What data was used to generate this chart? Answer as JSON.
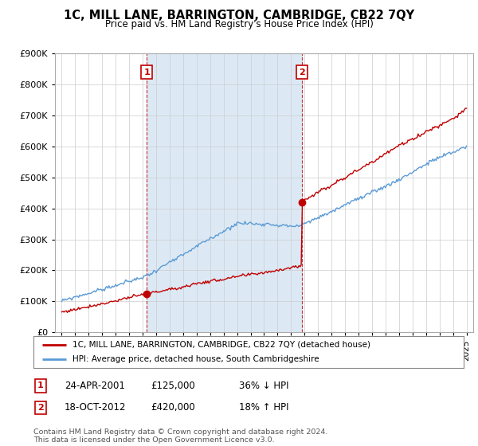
{
  "title": "1C, MILL LANE, BARRINGTON, CAMBRIDGE, CB22 7QY",
  "subtitle": "Price paid vs. HM Land Registry's House Price Index (HPI)",
  "legend_line1": "1C, MILL LANE, BARRINGTON, CAMBRIDGE, CB22 7QY (detached house)",
  "legend_line2": "HPI: Average price, detached house, South Cambridgeshire",
  "footnote": "Contains HM Land Registry data © Crown copyright and database right 2024.\nThis data is licensed under the Open Government Licence v3.0.",
  "sale1_date": "24-APR-2001",
  "sale1_price": 125000,
  "sale1_label": "36% ↓ HPI",
  "sale2_date": "18-OCT-2012",
  "sale2_price": 420000,
  "sale2_label": "18% ↑ HPI",
  "hpi_color": "#5b9bd5",
  "price_color": "#c00000",
  "vline_color": "#c00000",
  "shade_color": "#dce9f5",
  "background_color": "#ffffff",
  "plot_bg_color": "#ffffff",
  "ylim": [
    0,
    900000
  ],
  "yticks": [
    0,
    100000,
    200000,
    300000,
    400000,
    500000,
    600000,
    700000,
    800000,
    900000
  ],
  "figsize": [
    6.0,
    5.6
  ],
  "dpi": 100,
  "sale1_x": 2001.3,
  "sale2_x": 2012.8
}
